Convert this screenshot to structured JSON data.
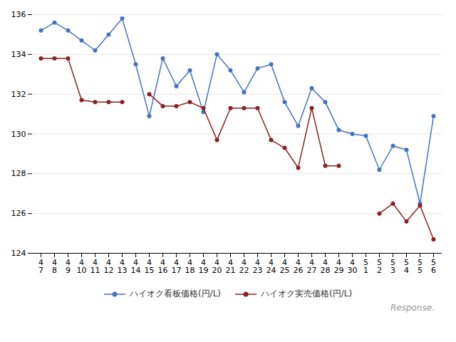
{
  "chart_data": {
    "type": "line",
    "categories": [
      "4\n7",
      "4\n8",
      "4\n9",
      "4\n10",
      "4\n11",
      "4\n12",
      "4\n13",
      "4\n14",
      "4\n15",
      "4\n16",
      "4\n17",
      "4\n18",
      "4\n19",
      "4\n20",
      "4\n21",
      "4\n22",
      "4\n23",
      "4\n24",
      "4\n25",
      "4\n26",
      "4\n27",
      "4\n28",
      "4\n29",
      "4\n30",
      "5\n1",
      "5\n2",
      "5\n3",
      "5\n4",
      "5\n5",
      "5\n6"
    ],
    "series": [
      {
        "name": "ハイオク看板価格(円/L)",
        "color": "#4472c4",
        "marker": "circle",
        "values": [
          135.2,
          135.6,
          135.2,
          134.7,
          134.2,
          135.0,
          135.8,
          133.5,
          130.9,
          133.8,
          132.4,
          133.2,
          131.1,
          134.0,
          133.2,
          132.1,
          133.3,
          133.5,
          131.6,
          130.4,
          132.3,
          131.6,
          130.2,
          130.0,
          129.9,
          128.2,
          129.4,
          129.2,
          126.5,
          130.9
        ]
      },
      {
        "name": "ハイオク実売価格(円/L)",
        "color": "#8b2020",
        "marker": "circle",
        "values": [
          133.8,
          133.8,
          133.8,
          131.7,
          131.6,
          131.6,
          131.6,
          null,
          132.0,
          131.4,
          131.4,
          131.6,
          131.3,
          129.7,
          131.3,
          131.3,
          131.3,
          129.7,
          129.3,
          128.3,
          131.3,
          128.4,
          128.4,
          null,
          null,
          126.0,
          126.5,
          125.6,
          126.4,
          124.7
        ]
      }
    ],
    "ylim": [
      124,
      136
    ],
    "yticks": [
      124,
      126,
      128,
      130,
      132,
      134,
      136
    ],
    "grid": true,
    "legend": "bottom",
    "annotations": [
      "Response."
    ]
  }
}
